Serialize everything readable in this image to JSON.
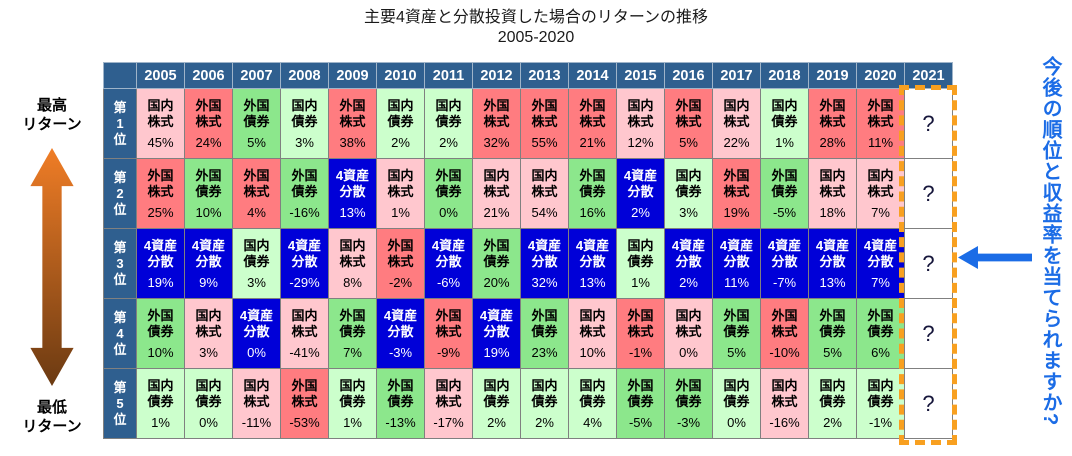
{
  "title": {
    "line1": "主要4資産と分散投資した場合のリターンの推移",
    "line2": "2005-2020"
  },
  "left_annotation": {
    "top": "最高\nリターン",
    "bottom": "最低\nリターン"
  },
  "right_annotation": {
    "text": "今後の順位と収益率を当てられますか?"
  },
  "colors": {
    "header_bg": "#2F5F8F",
    "header_fg": "#FFFFFF",
    "grid": "#808080",
    "title_fg": "#1A1A1A",
    "highlight_orange": "#F8A020",
    "arrow_blue": "#1B6CE6",
    "gradient_top": "#F07D26",
    "gradient_bottom": "#6B3A12",
    "future_fg": "#15153A"
  },
  "assets": {
    "国内株式": {
      "display": "国内\n株式",
      "bg": "#FFC7CE",
      "fg": "#000000"
    },
    "外国株式": {
      "display": "外国\n株式",
      "bg": "#FF7C80",
      "fg": "#000000"
    },
    "国内債券": {
      "display": "国内\n債券",
      "bg": "#CCFFCC",
      "fg": "#000000"
    },
    "外国債券": {
      "display": "外国\n債券",
      "bg": "#8CE78C",
      "fg": "#000000"
    },
    "4資産分散": {
      "display": "4資産\n分散",
      "bg": "#0000D8",
      "fg": "#FFFFFF"
    }
  },
  "chart_data": {
    "type": "table",
    "title": "主要4資産と分散投資した場合のリターンの推移",
    "subtitle": "2005-2020",
    "unit": "%",
    "columns": [
      "2005",
      "2006",
      "2007",
      "2008",
      "2009",
      "2010",
      "2011",
      "2012",
      "2013",
      "2014",
      "2015",
      "2016",
      "2017",
      "2018",
      "2019",
      "2020",
      "2021"
    ],
    "future_year": "2021",
    "future_marker": "?",
    "rows": [
      {
        "rank": "第1位",
        "cells": [
          {
            "asset": "国内株式",
            "value": 45
          },
          {
            "asset": "外国株式",
            "value": 24
          },
          {
            "asset": "外国債券",
            "value": 5
          },
          {
            "asset": "国内債券",
            "value": 3
          },
          {
            "asset": "外国株式",
            "value": 38
          },
          {
            "asset": "国内債券",
            "value": 2
          },
          {
            "asset": "国内債券",
            "value": 2
          },
          {
            "asset": "外国株式",
            "value": 32
          },
          {
            "asset": "外国株式",
            "value": 55
          },
          {
            "asset": "外国株式",
            "value": 21
          },
          {
            "asset": "国内株式",
            "value": 12
          },
          {
            "asset": "外国株式",
            "value": 5
          },
          {
            "asset": "国内株式",
            "value": 22
          },
          {
            "asset": "国内債券",
            "value": 1
          },
          {
            "asset": "外国株式",
            "value": 28
          },
          {
            "asset": "外国株式",
            "value": 11
          }
        ]
      },
      {
        "rank": "第2位",
        "cells": [
          {
            "asset": "外国株式",
            "value": 25
          },
          {
            "asset": "外国債券",
            "value": 10
          },
          {
            "asset": "外国株式",
            "value": 4
          },
          {
            "asset": "外国債券",
            "value": -16
          },
          {
            "asset": "4資産分散",
            "value": 13
          },
          {
            "asset": "国内株式",
            "value": 1
          },
          {
            "asset": "外国債券",
            "value": 0
          },
          {
            "asset": "国内株式",
            "value": 21
          },
          {
            "asset": "国内株式",
            "value": 54
          },
          {
            "asset": "外国債券",
            "value": 16
          },
          {
            "asset": "4資産分散",
            "value": 2
          },
          {
            "asset": "国内債券",
            "value": 3
          },
          {
            "asset": "外国株式",
            "value": 19
          },
          {
            "asset": "外国債券",
            "value": -5
          },
          {
            "asset": "国内株式",
            "value": 18
          },
          {
            "asset": "国内株式",
            "value": 7
          }
        ]
      },
      {
        "rank": "第3位",
        "cells": [
          {
            "asset": "4資産分散",
            "value": 19
          },
          {
            "asset": "4資産分散",
            "value": 9
          },
          {
            "asset": "国内債券",
            "value": 3
          },
          {
            "asset": "4資産分散",
            "value": -29
          },
          {
            "asset": "国内株式",
            "value": 8
          },
          {
            "asset": "外国株式",
            "value": -2
          },
          {
            "asset": "4資産分散",
            "value": -6
          },
          {
            "asset": "外国債券",
            "value": 20
          },
          {
            "asset": "4資産分散",
            "value": 32
          },
          {
            "asset": "4資産分散",
            "value": 13
          },
          {
            "asset": "国内債券",
            "value": 1
          },
          {
            "asset": "4資産分散",
            "value": 2
          },
          {
            "asset": "4資産分散",
            "value": 11
          },
          {
            "asset": "4資産分散",
            "value": -7
          },
          {
            "asset": "4資産分散",
            "value": 13
          },
          {
            "asset": "4資産分散",
            "value": 7
          }
        ]
      },
      {
        "rank": "第4位",
        "cells": [
          {
            "asset": "外国債券",
            "value": 10
          },
          {
            "asset": "国内株式",
            "value": 3
          },
          {
            "asset": "4資産分散",
            "value": 0
          },
          {
            "asset": "国内株式",
            "value": -41
          },
          {
            "asset": "外国債券",
            "value": 7
          },
          {
            "asset": "4資産分散",
            "value": -3
          },
          {
            "asset": "外国株式",
            "value": -9
          },
          {
            "asset": "4資産分散",
            "value": 19
          },
          {
            "asset": "外国債券",
            "value": 23
          },
          {
            "asset": "国内株式",
            "value": 10
          },
          {
            "asset": "外国株式",
            "value": -1
          },
          {
            "asset": "国内株式",
            "value": 0
          },
          {
            "asset": "外国債券",
            "value": 5
          },
          {
            "asset": "外国株式",
            "value": -10
          },
          {
            "asset": "外国債券",
            "value": 5
          },
          {
            "asset": "外国債券",
            "value": 6
          }
        ]
      },
      {
        "rank": "第5位",
        "cells": [
          {
            "asset": "国内債券",
            "value": 1
          },
          {
            "asset": "国内債券",
            "value": 0
          },
          {
            "asset": "国内株式",
            "value": -11
          },
          {
            "asset": "外国株式",
            "value": -53
          },
          {
            "asset": "国内債券",
            "value": 1
          },
          {
            "asset": "外国債券",
            "value": -13
          },
          {
            "asset": "国内株式",
            "value": -17
          },
          {
            "asset": "国内債券",
            "value": 2
          },
          {
            "asset": "国内債券",
            "value": 2
          },
          {
            "asset": "国内債券",
            "value": 4
          },
          {
            "asset": "外国債券",
            "value": -5
          },
          {
            "asset": "外国債券",
            "value": -3
          },
          {
            "asset": "国内債券",
            "value": 0
          },
          {
            "asset": "国内株式",
            "value": -16
          },
          {
            "asset": "国内債券",
            "value": 2
          },
          {
            "asset": "国内債券",
            "value": -1
          }
        ]
      }
    ]
  }
}
